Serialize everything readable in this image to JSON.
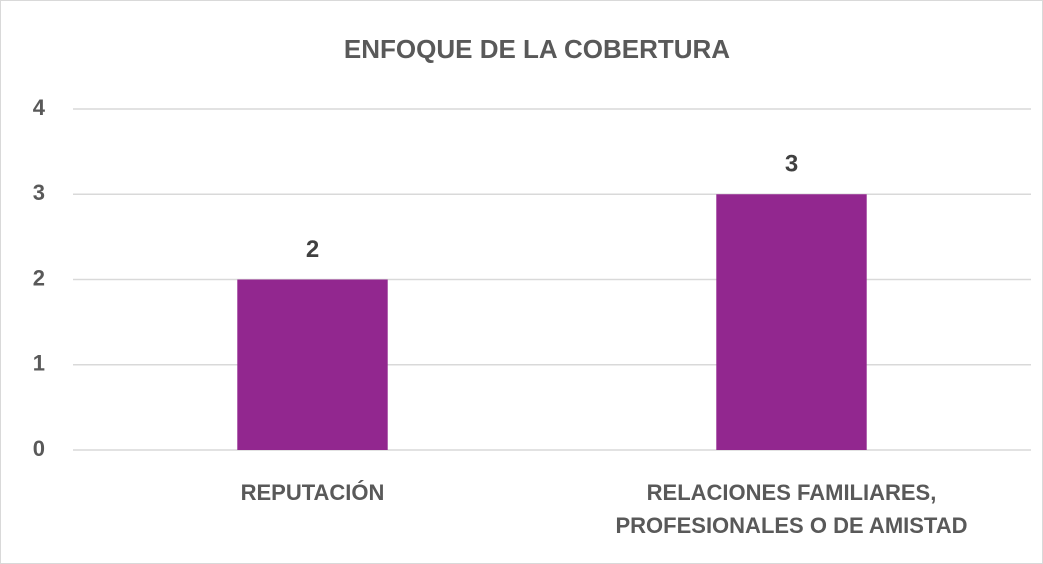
{
  "chart_data": {
    "type": "bar",
    "title": "ENFOQUE DE LA COBERTURA",
    "categories": [
      "REPUTACIÓN",
      "RELACIONES FAMILIARES, PROFESIONALES O DE AMISTAD"
    ],
    "values": [
      2,
      3
    ],
    "color": "#92278f",
    "ylim": [
      0,
      4
    ],
    "yticks": [
      0,
      1,
      2,
      3,
      4
    ],
    "grid": true
  }
}
